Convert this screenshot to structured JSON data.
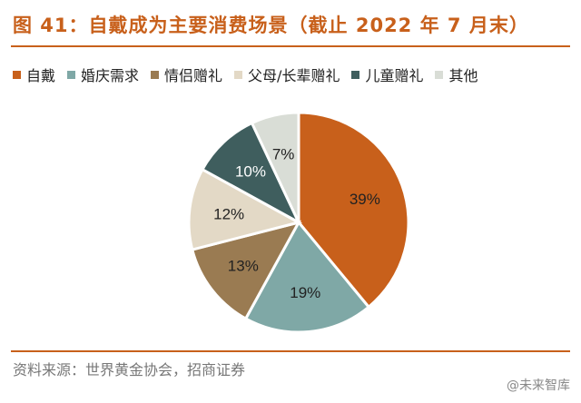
{
  "title": "图 41：自戴成为主要消费场景（截止 2022 年 7 月末）",
  "source": "资料来源：世界黄金协会，招商证券",
  "watermark": "@未来智库",
  "chart_data": {
    "type": "pie",
    "title": "图 41：自戴成为主要消费场景（截止 2022 年 7 月末）",
    "legend_position": "top",
    "start_angle_deg": 0,
    "direction": "clockwise",
    "slices": [
      {
        "label": "自戴",
        "value": 39,
        "display": "39%",
        "color": "#c8601b",
        "text_color": "#222222"
      },
      {
        "label": "婚庆需求",
        "value": 19,
        "display": "19%",
        "color": "#7fa8a6",
        "text_color": "#222222"
      },
      {
        "label": "情侣赠礼",
        "value": 13,
        "display": "13%",
        "color": "#9a7b52",
        "text_color": "#222222"
      },
      {
        "label": "父母/长辈赠礼",
        "value": 12,
        "display": "12%",
        "color": "#e3d9c6",
        "text_color": "#222222"
      },
      {
        "label": "儿童赠礼",
        "value": 10,
        "display": "10%",
        "color": "#3f5e5e",
        "text_color": "#ffffff"
      },
      {
        "label": "其他",
        "value": 7,
        "display": "7%",
        "color": "#d9ddd6",
        "text_color": "#222222"
      }
    ]
  }
}
